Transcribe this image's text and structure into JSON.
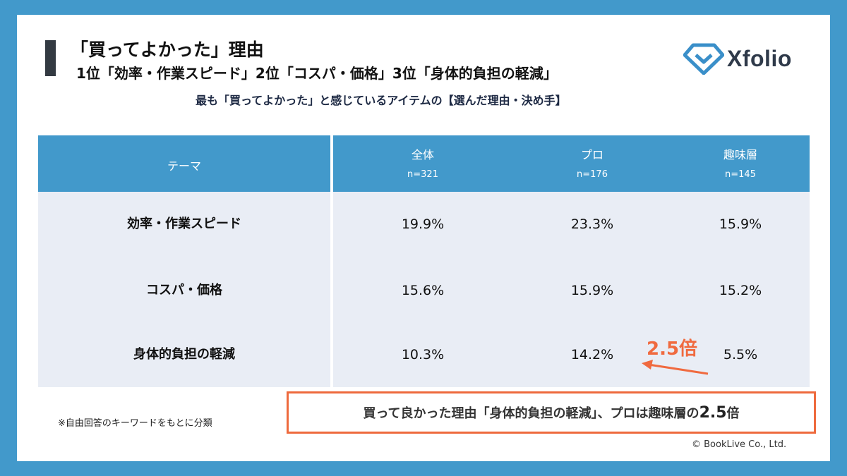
{
  "header": {
    "title": "「買ってよかった」理由",
    "subtitle": "1位「効率・作業スピード」2位「コスパ・価格」3位「身体的負担の軽減」",
    "question": "最も「買ってよかった」と感じているアイテムの【選んだ理由・決め手】"
  },
  "logo": {
    "text": "Xfolio",
    "icon": "xfolio-diamond-icon",
    "color": "#3a8fc9"
  },
  "colors": {
    "header_bg": "#4299cb",
    "body_bg": "#e9edf5",
    "accent": "#f06a3f"
  },
  "chart_data": {
    "type": "table",
    "columns": [
      {
        "label": "テーマ",
        "n": ""
      },
      {
        "label": "全体",
        "n": "n=321"
      },
      {
        "label": "プロ",
        "n": "n=176"
      },
      {
        "label": "趣味層",
        "n": "n=145"
      }
    ],
    "rows": [
      {
        "theme": "効率・作業スピード",
        "values": [
          "19.9%",
          "23.3%",
          "15.9%"
        ]
      },
      {
        "theme": "コスパ・価格",
        "values": [
          "15.6%",
          "15.9%",
          "15.2%"
        ]
      },
      {
        "theme": "身体的負担の軽減",
        "values": [
          "10.3%",
          "14.2%",
          "5.5%"
        ]
      }
    ],
    "annotation": {
      "text": "2.5倍",
      "from": "趣味層",
      "to": "プロ",
      "row": "身体的負担の軽減"
    }
  },
  "note": "※自由回答のキーワードをもとに分類",
  "callout": {
    "text_before": "買って良かった理由「身体的負担の軽減」、プロは趣味層の",
    "highlight": "2.5",
    "text_after": "倍"
  },
  "copyright": "© BookLive Co., Ltd."
}
